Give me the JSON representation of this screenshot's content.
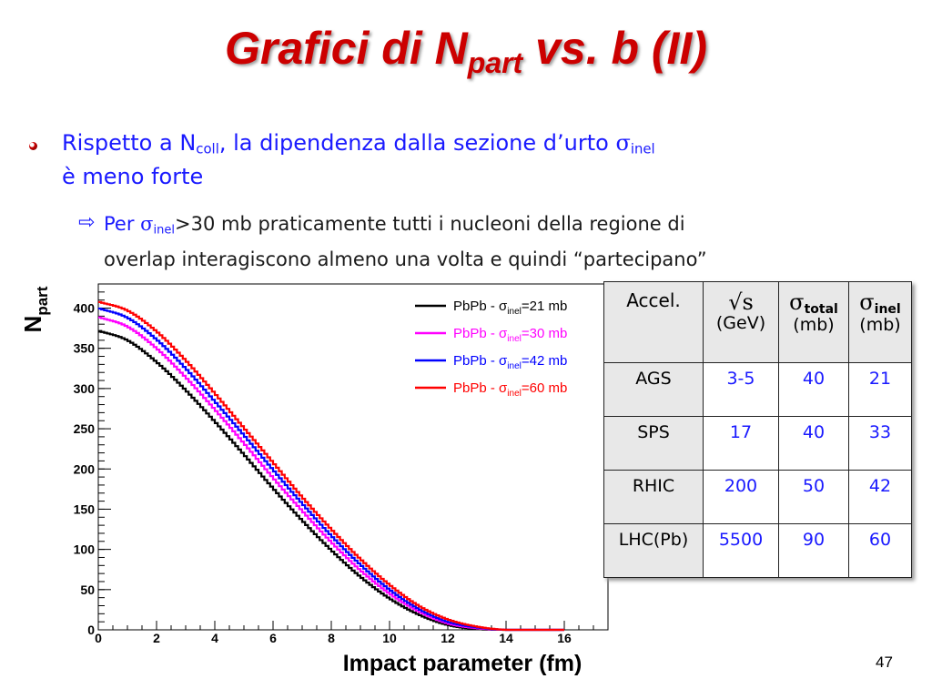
{
  "slide": {
    "title_main": "Grafici di  N",
    "title_sub": "part",
    "title_tail": " vs. b (II)",
    "bullet1_pre": "Rispetto a N",
    "bullet1_sub": "coll",
    "bullet1_mid": ", la dipendenza dalla sezione d’urto ",
    "bullet1_sigma": "σ",
    "bullet1_sigma_sub": "inel",
    "bullet1_line2": "è meno forte",
    "arrow_icon": "⇨",
    "bullet2_pre": "Per ",
    "bullet2_sigma": "σ",
    "bullet2_sub": "inel",
    "bullet2_rest": ">30 mb praticamente tutti i nucleoni della regione di",
    "bullet2_line2": "overlap interagiscono almeno una volta e quindi “partecipano”",
    "page_number": "47"
  },
  "table": {
    "headers": {
      "accel": "Accel.",
      "sqrt_s": "√s",
      "sqrt_s_unit": "(GeV)",
      "sigma_total_symbol": "σ",
      "sigma_total_sub": "total",
      "sigma_total_unit": "(mb)",
      "sigma_inel_symbol": "σ",
      "sigma_inel_sub": "inel",
      "sigma_inel_unit": "(mb)"
    },
    "rows": [
      {
        "accel": "AGS",
        "sqrt_s": "3-5",
        "sigma_total": "40",
        "sigma_inel": "21"
      },
      {
        "accel": "SPS",
        "sqrt_s": "17",
        "sigma_total": "40",
        "sigma_inel": "33"
      },
      {
        "accel": "RHIC",
        "sqrt_s": "200",
        "sigma_total": "50",
        "sigma_inel": "42"
      },
      {
        "accel": "LHC(Pb)",
        "sqrt_s": "5500",
        "sigma_total": "90",
        "sigma_inel": "60"
      }
    ]
  },
  "chart_data": {
    "type": "line",
    "title": "",
    "xlabel": "Impact parameter (fm)",
    "ylabel": "N",
    "ylabel_sub": "part",
    "xlim": [
      0,
      17.5
    ],
    "ylim": [
      0,
      430
    ],
    "xticks": [
      "0",
      "2",
      "4",
      "6",
      "8",
      "10",
      "12",
      "14",
      "16"
    ],
    "yticks": [
      "0",
      "50",
      "100",
      "150",
      "200",
      "250",
      "300",
      "350",
      "400"
    ],
    "legend_position": "top-right",
    "series": [
      {
        "name_prefix": "PbPb - σ",
        "name_sub": "inel",
        "name_suffix": "=21 mb",
        "color": "#000000",
        "x": [
          0,
          1,
          2,
          3,
          4,
          5,
          6,
          7,
          8,
          9,
          10,
          11,
          12,
          13,
          14,
          15,
          16
        ],
        "y": [
          372,
          360,
          333,
          298,
          259,
          218,
          176,
          136,
          99,
          66,
          39,
          19,
          6,
          1,
          0,
          0,
          0
        ]
      },
      {
        "name_prefix": "PbPb - σ",
        "name_sub": "inel",
        "name_suffix": "=30 mb",
        "color": "#ff00ff",
        "x": [
          0,
          1,
          2,
          3,
          4,
          5,
          6,
          7,
          8,
          9,
          10,
          11,
          12,
          13,
          14,
          15,
          16
        ],
        "y": [
          389,
          377,
          350,
          314,
          274,
          232,
          189,
          148,
          109,
          74,
          45,
          23,
          8,
          2,
          0,
          0,
          0
        ]
      },
      {
        "name_prefix": "PbPb - σ",
        "name_sub": "inel",
        "name_suffix": "=42 mb",
        "color": "#0000ff",
        "x": [
          0,
          1,
          2,
          3,
          4,
          5,
          6,
          7,
          8,
          9,
          10,
          11,
          12,
          13,
          14,
          15,
          16
        ],
        "y": [
          400,
          388,
          361,
          325,
          284,
          242,
          199,
          157,
          117,
          81,
          50,
          26,
          10,
          3,
          0,
          0,
          0
        ]
      },
      {
        "name_prefix": "PbPb - σ",
        "name_sub": "inel",
        "name_suffix": "=60 mb",
        "color": "#ff0000",
        "x": [
          0,
          1,
          2,
          3,
          4,
          5,
          6,
          7,
          8,
          9,
          10,
          11,
          12,
          13,
          14,
          15,
          16
        ],
        "y": [
          408,
          397,
          371,
          335,
          294,
          251,
          208,
          165,
          125,
          88,
          56,
          30,
          13,
          4,
          0,
          0,
          0
        ]
      }
    ]
  }
}
